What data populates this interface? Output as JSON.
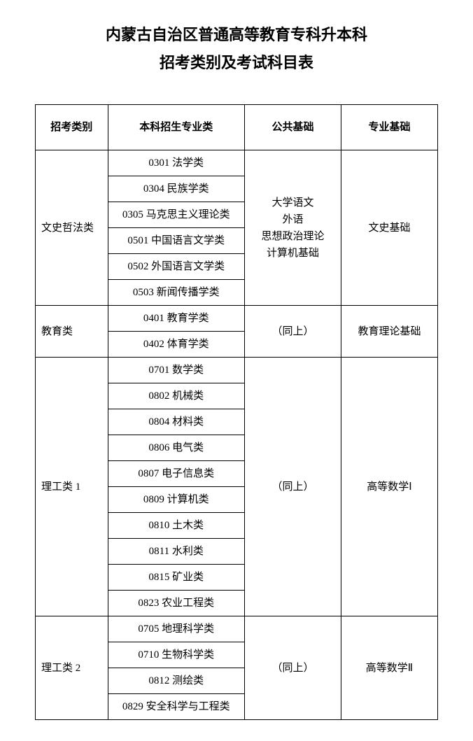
{
  "title_line1": "内蒙古自治区普通高等教育专科升本科",
  "title_line2": "招考类别及考试科目表",
  "headers": {
    "col1": "招考类别",
    "col2": "本科招生专业类",
    "col3": "公共基础",
    "col4": "专业基础"
  },
  "groups": [
    {
      "category": "文史哲法类",
      "public_base": "大学语文\n外语\n思想政治理论\n计算机基础",
      "pro_base": "文史基础",
      "majors": [
        "0301 法学类",
        "0304 民族学类",
        "0305 马克思主义理论类",
        "0501 中国语言文学类",
        "0502 外国语言文学类",
        "0503 新闻传播学类"
      ]
    },
    {
      "category": "教育类",
      "public_base": "（同上）",
      "pro_base": "教育理论基础",
      "majors": [
        "0401 教育学类",
        "0402 体育学类"
      ]
    },
    {
      "category": "理工类 1",
      "public_base": "（同上）",
      "pro_base": "高等数学Ⅰ",
      "majors": [
        "0701 数学类",
        "0802 机械类",
        "0804 材料类",
        "0806 电气类",
        "0807 电子信息类",
        "0809 计算机类",
        "0810 土木类",
        "0811 水利类",
        "0815 矿业类",
        "0823 农业工程类"
      ]
    },
    {
      "category": "理工类 2",
      "public_base": "（同上）",
      "pro_base": "高等数学Ⅱ",
      "majors": [
        "0705 地理科学类",
        "0710 生物科学类",
        "0812 测绘类",
        "0829 安全科学与工程类"
      ]
    }
  ],
  "style": {
    "background_color": "#ffffff",
    "text_color": "#000000",
    "border_color": "#000000",
    "title_fontsize": 22,
    "cell_fontsize": 15,
    "font_family": "SimSun"
  }
}
